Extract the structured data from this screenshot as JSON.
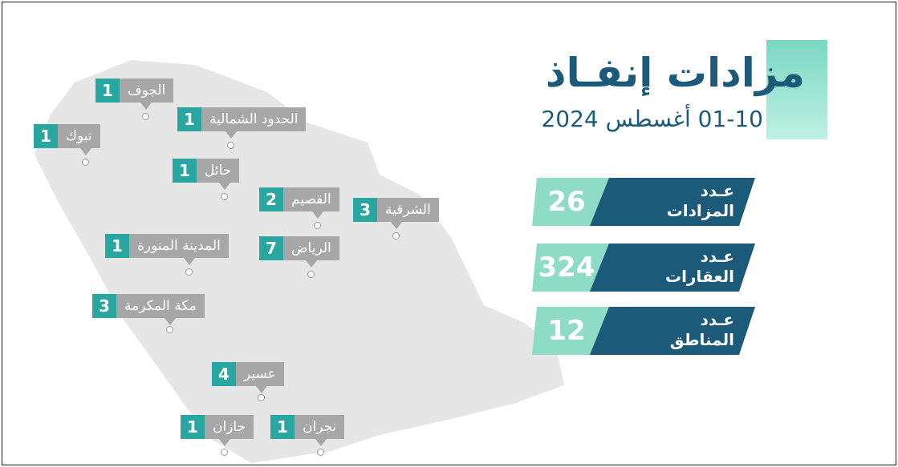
{
  "title": "مزادات إنفـاذ",
  "subtitle": "01-10 أغسطس 2024",
  "stats": [
    {
      "label_top": "عـدد",
      "label_bottom": "المزادات",
      "value": "26"
    },
    {
      "label_top": "عـدد",
      "label_bottom": "العقارات",
      "value": "324"
    },
    {
      "label_top": "عـدد",
      "label_bottom": "المناطق",
      "value": "12"
    }
  ],
  "regions": [
    {
      "name": "الجوف",
      "count": "1"
    },
    {
      "name": "الحدود الشمالية",
      "count": "1"
    },
    {
      "name": "تبوك",
      "count": "1"
    },
    {
      "name": "حائل",
      "count": "1"
    },
    {
      "name": "القصيم",
      "count": "2"
    },
    {
      "name": "الشرقية",
      "count": "3"
    },
    {
      "name": "المدينة المنورة",
      "count": "1"
    },
    {
      "name": "الرياض",
      "count": "7"
    },
    {
      "name": "مكة المكرمة",
      "count": "3"
    },
    {
      "name": "عسير",
      "count": "4"
    },
    {
      "name": "جازان",
      "count": "1"
    },
    {
      "name": "نجران",
      "count": "1"
    }
  ],
  "colors": {
    "navy": "#1b5a78",
    "teal": "#2aa6a0",
    "mint": "#8fdcc6",
    "map_gray": "#e4e4e4",
    "label_gray": "#a7a7a7"
  }
}
